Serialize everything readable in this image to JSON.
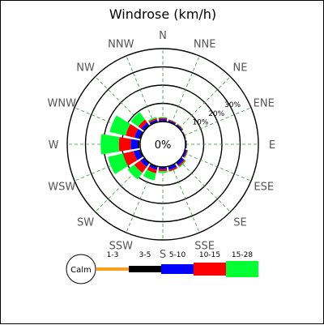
{
  "chart_data": {
    "type": "windrose",
    "title": "Windrose (km/h)",
    "unit": "km/h",
    "center_label": "0%",
    "calm_label": "Calm",
    "directions": [
      "N",
      "NNE",
      "NE",
      "ENE",
      "E",
      "ESE",
      "SE",
      "SSE",
      "S",
      "SSW",
      "SW",
      "WSW",
      "W",
      "WNW",
      "NW",
      "NNW"
    ],
    "radial_ticks": [
      "10%",
      "20%",
      "30%"
    ],
    "radial_tick_values": [
      10,
      20,
      30
    ],
    "rmax_percent": 40,
    "speed_bins": [
      {
        "label": "1-3",
        "color": "#f5a11b"
      },
      {
        "label": "3-5",
        "color": "#000000"
      },
      {
        "label": "5-10",
        "color": "#0000ff"
      },
      {
        "label": "10-15",
        "color": "#ff0000"
      },
      {
        "label": "15-28",
        "color": "#00ff33"
      }
    ],
    "series": [
      {
        "name": "1-3",
        "values": [
          0.3,
          0.2,
          0.2,
          0.1,
          0.1,
          0.1,
          0.1,
          0.2,
          0.2,
          0.3,
          0.3,
          0.4,
          0.5,
          0.4,
          0.3,
          0.3
        ]
      },
      {
        "name": "3-5",
        "values": [
          0.3,
          0.2,
          0.2,
          0.1,
          0.1,
          0.2,
          0.3,
          0.3,
          0.3,
          0.4,
          0.5,
          0.6,
          0.7,
          0.6,
          0.4,
          0.3
        ]
      },
      {
        "name": "5-10",
        "values": [
          0.8,
          0.6,
          0.5,
          0.3,
          0.4,
          0.8,
          1.5,
          1.5,
          0.8,
          1.2,
          2.0,
          3.0,
          4.0,
          2.5,
          1.5,
          0.8
        ]
      },
      {
        "name": "10-15",
        "values": [
          0.7,
          0.4,
          0.4,
          0.2,
          0.2,
          0.5,
          0.8,
          0.8,
          1.0,
          2.0,
          4.0,
          6.0,
          6.5,
          5.0,
          2.0,
          0.8
        ]
      },
      {
        "name": "15-28",
        "values": [
          0.4,
          0.2,
          0.2,
          0.1,
          0.1,
          0.3,
          0.5,
          0.3,
          0.9,
          4.0,
          4.5,
          8.5,
          10.0,
          9.0,
          5.0,
          0.7
        ]
      }
    ],
    "grid": true,
    "legend": "bottom"
  }
}
